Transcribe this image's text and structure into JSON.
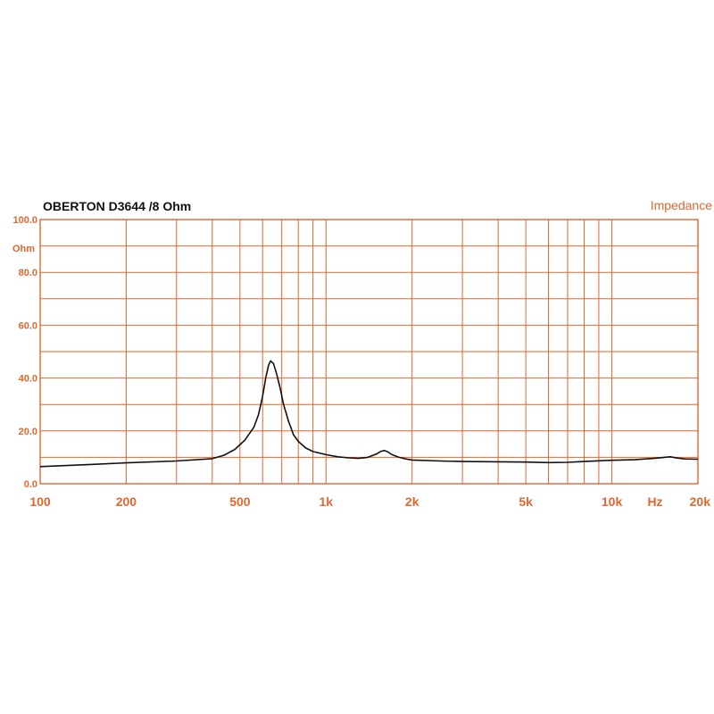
{
  "colors": {
    "grid": "#e2662d",
    "label": "#e2662d",
    "curve": "#111111",
    "title": "#111111"
  },
  "chart_data": {
    "type": "line",
    "title": "OBERTON  D3644 /8  Ohm",
    "corner_label": "Impedance",
    "y_unit_label": "Ohm",
    "x_unit_label": "Hz",
    "x_scale": "log",
    "xlim": [
      100,
      20000
    ],
    "ylim": [
      0,
      100
    ],
    "grid": true,
    "y_ticks": [
      {
        "value": 100,
        "label": "100.0"
      },
      {
        "value": 80,
        "label": "80.0"
      },
      {
        "value": 60,
        "label": "60.0"
      },
      {
        "value": 40,
        "label": "40.0"
      },
      {
        "value": 20,
        "label": "20.0"
      },
      {
        "value": 0,
        "label": "0.0"
      }
    ],
    "x_ticks": [
      {
        "value": 100,
        "label": "100"
      },
      {
        "value": 200,
        "label": "200"
      },
      {
        "value": 500,
        "label": "500"
      },
      {
        "value": 1000,
        "label": "1k"
      },
      {
        "value": 2000,
        "label": "2k"
      },
      {
        "value": 5000,
        "label": "5k"
      },
      {
        "value": 10000,
        "label": "10k"
      },
      {
        "value": 20000,
        "label": "20k"
      }
    ],
    "series": [
      {
        "x": [
          100,
          150,
          200,
          300,
          400,
          440,
          480,
          520,
          560,
          580,
          600,
          615,
          630,
          640,
          655,
          670,
          690,
          710,
          740,
          770,
          800,
          850,
          900,
          1000,
          1100,
          1200,
          1300,
          1400,
          1500,
          1550,
          1600,
          1650,
          1700,
          1800,
          1900,
          2000,
          2500,
          3000,
          4000,
          5000,
          6000,
          7000,
          8000,
          10000,
          12000,
          14000,
          15000,
          16000,
          17000,
          18000,
          20000
        ],
        "y": [
          6.5,
          7.3,
          7.9,
          8.6,
          9.5,
          10.8,
          13.0,
          16.5,
          21.5,
          26.0,
          33.0,
          40.0,
          45.0,
          46.5,
          45.5,
          42.0,
          36.5,
          30.0,
          23.5,
          18.5,
          16.0,
          13.5,
          12.2,
          11.0,
          10.2,
          9.8,
          9.6,
          10.0,
          11.2,
          12.2,
          12.6,
          12.0,
          11.0,
          10.0,
          9.4,
          9.0,
          8.6,
          8.4,
          8.3,
          8.2,
          8.0,
          8.1,
          8.4,
          8.9,
          9.1,
          9.6,
          9.9,
          10.2,
          9.7,
          9.4,
          9.3
        ]
      }
    ]
  }
}
